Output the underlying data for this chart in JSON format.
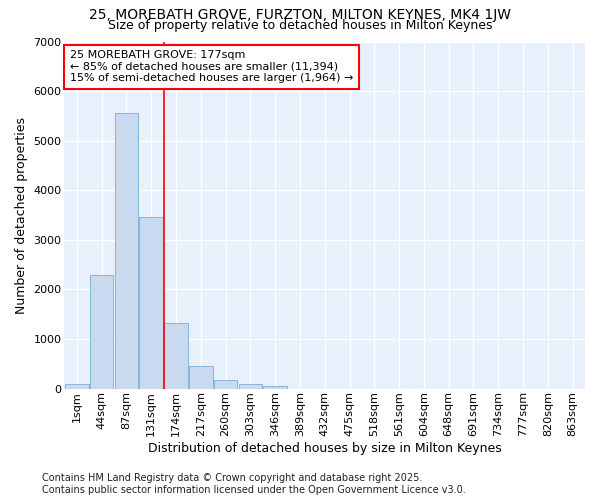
{
  "title1": "25, MOREBATH GROVE, FURZTON, MILTON KEYNES, MK4 1JW",
  "title2": "Size of property relative to detached houses in Milton Keynes",
  "xlabel": "Distribution of detached houses by size in Milton Keynes",
  "ylabel": "Number of detached properties",
  "categories": [
    "1sqm",
    "44sqm",
    "87sqm",
    "131sqm",
    "174sqm",
    "217sqm",
    "260sqm",
    "303sqm",
    "346sqm",
    "389sqm",
    "432sqm",
    "475sqm",
    "518sqm",
    "561sqm",
    "604sqm",
    "648sqm",
    "691sqm",
    "734sqm",
    "777sqm",
    "820sqm",
    "863sqm"
  ],
  "values": [
    100,
    2300,
    5550,
    3450,
    1330,
    450,
    175,
    100,
    50,
    0,
    0,
    0,
    0,
    0,
    0,
    0,
    0,
    0,
    0,
    0,
    0
  ],
  "bar_color": "#c9d9ef",
  "bar_edge_color": "#7aacd6",
  "vline_color": "red",
  "vline_x_index": 4,
  "annotation_text": "25 MOREBATH GROVE: 177sqm\n← 85% of detached houses are smaller (11,394)\n15% of semi-detached houses are larger (1,964) →",
  "annotation_box_color": "white",
  "annotation_box_edge": "red",
  "ylim": [
    0,
    7000
  ],
  "yticks": [
    0,
    1000,
    2000,
    3000,
    4000,
    5000,
    6000,
    7000
  ],
  "footer": "Contains HM Land Registry data © Crown copyright and database right 2025.\nContains public sector information licensed under the Open Government Licence v3.0.",
  "background_color": "#ffffff",
  "plot_bg_color": "#e8f0fb",
  "grid_color": "#ffffff",
  "title_fontsize": 10,
  "subtitle_fontsize": 9,
  "axis_label_fontsize": 9,
  "tick_fontsize": 8,
  "annotation_fontsize": 8,
  "footer_fontsize": 7
}
